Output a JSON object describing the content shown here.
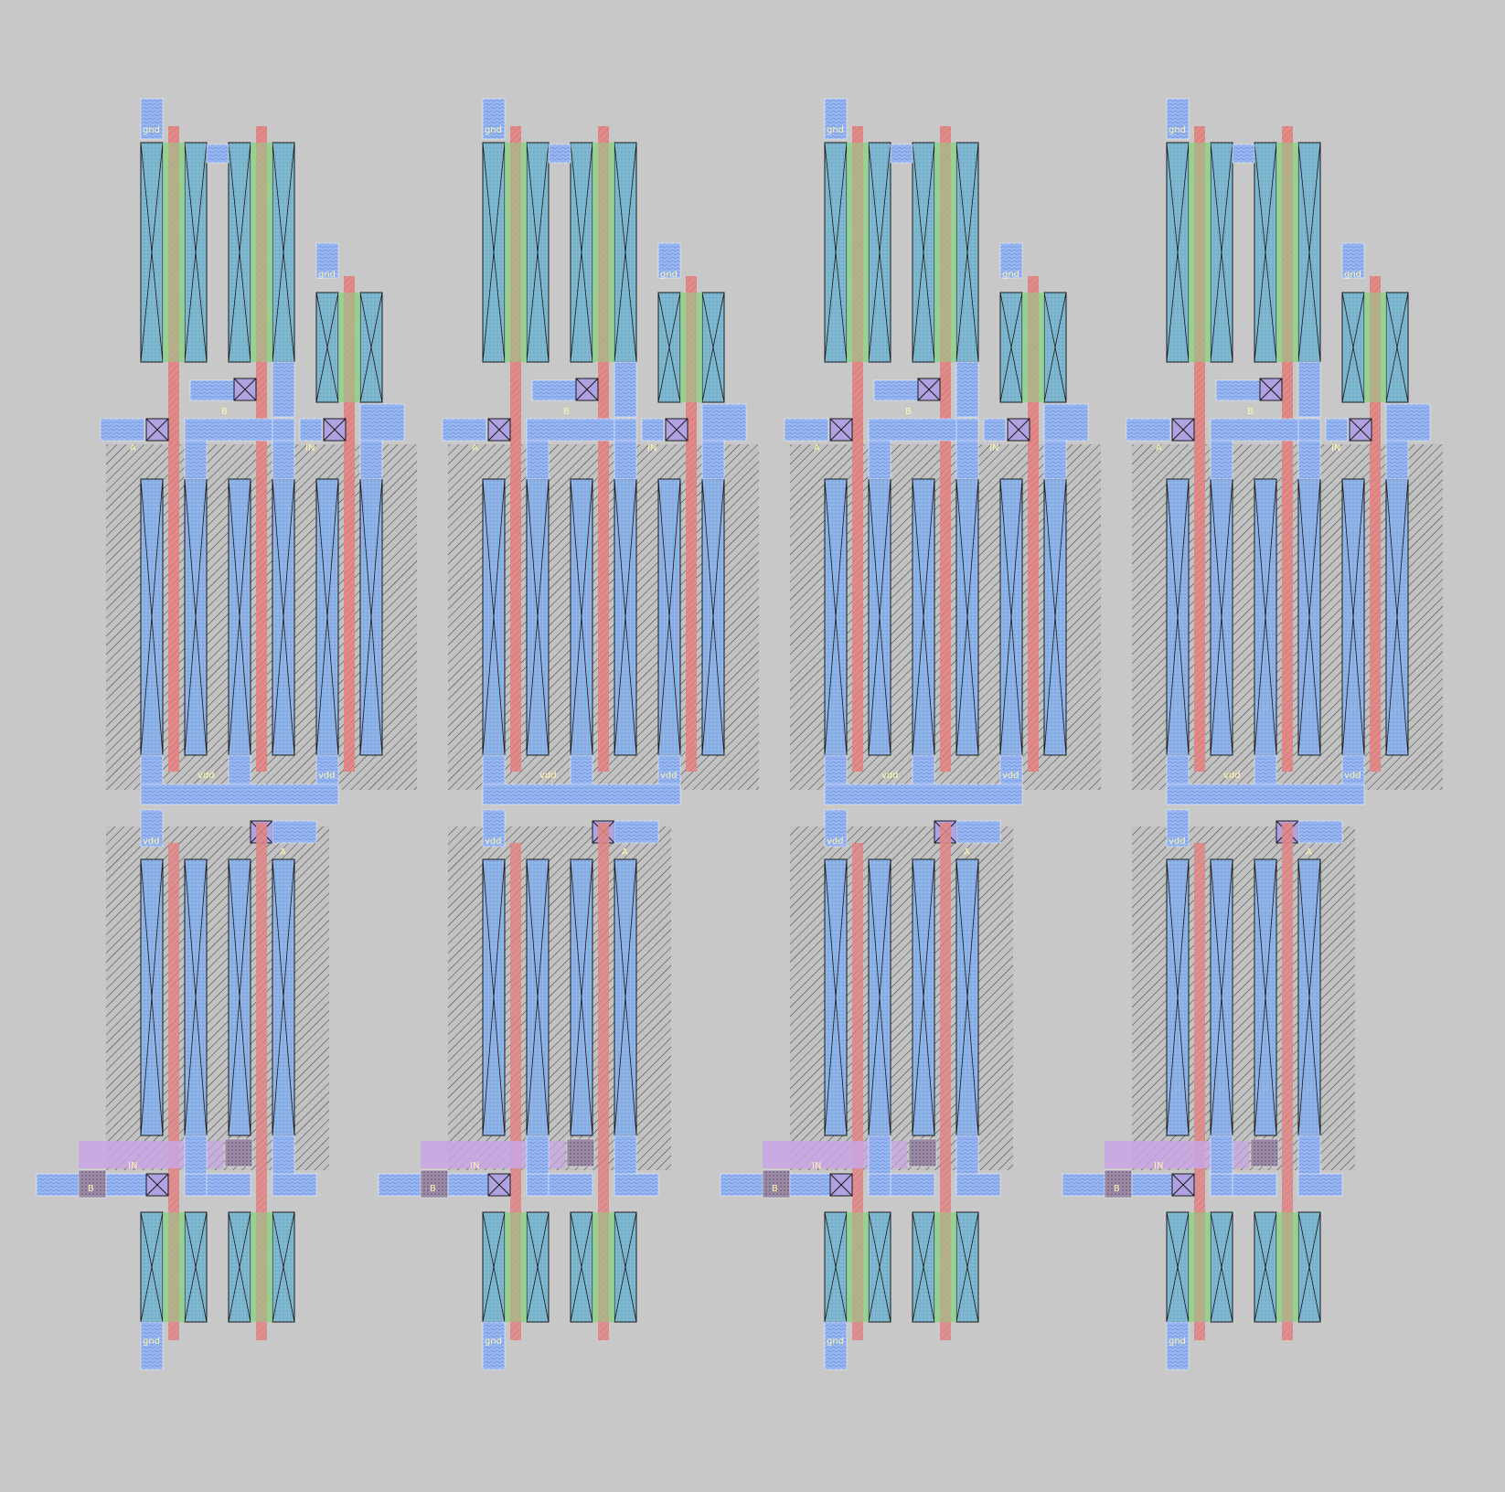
{
  "canvas": {
    "background": "#c8c8c8"
  },
  "layers": {
    "nwell": "#bdbdbd",
    "diffusion": "#8fb4e8",
    "pdiff": "#7fb9d1",
    "poly": "#e08a8a",
    "gate_overlap": "#8fd08a",
    "metal1": "#9ab8f2",
    "metal2": "#c9a6e6",
    "contact": "#b0a2e0",
    "label_color": "#fff6b0"
  },
  "cells": [
    {
      "name": "cell-1",
      "labels": {
        "gnd_top": "gnd",
        "gnd_top2": "gnd",
        "b_top": "B",
        "a_top": "A",
        "y_mid": "Y",
        "in_mid": "IN",
        "out_mid": "OUT",
        "vdd_mid1": "vdd",
        "vdd_mid2": "vdd",
        "vdd_low": "vdd",
        "a_low": "A",
        "in_low": "IN",
        "out_low": "OUT",
        "y_low": "Y",
        "b_low": "B",
        "gnd_bot": "gnd"
      }
    },
    {
      "name": "cell-2",
      "labels": {
        "gnd_top": "gnd",
        "gnd_top2": "gnd",
        "b_top": "B",
        "a_top": "A",
        "y_mid": "Y",
        "in_mid": "IN",
        "out_mid": "OUT",
        "vdd_mid1": "vdd",
        "vdd_mid2": "vdd",
        "vdd_low": "vdd",
        "a_low": "A",
        "in_low": "IN",
        "out_low": "OUT",
        "y_low": "Y",
        "b_low": "B",
        "gnd_bot": "gnd"
      }
    },
    {
      "name": "cell-3",
      "labels": {
        "gnd_top": "gnd",
        "gnd_top2": "gnd",
        "b_top": "B",
        "a_top": "A",
        "y_mid": "Y",
        "in_mid": "IN",
        "out_mid": "OUT",
        "vdd_mid1": "vdd",
        "vdd_mid2": "vdd",
        "vdd_low": "vdd",
        "a_low": "A",
        "in_low": "IN",
        "out_low": "OUT",
        "y_low": "Y",
        "b_low": "B",
        "gnd_bot": "gnd"
      }
    },
    {
      "name": "cell-4",
      "labels": {
        "gnd_top": "gnd",
        "gnd_top2": "gnd",
        "b_top": "B",
        "a_top": "A",
        "y_mid": "Y",
        "in_mid": "IN",
        "out_mid": "OUT",
        "vdd_mid1": "vdd",
        "vdd_mid2": "vdd",
        "vdd_low": "vdd",
        "a_low": "A",
        "in_low": "IN",
        "out_low": "OUT",
        "y_low": "Y",
        "b_low": "B",
        "gnd_bot": "gnd"
      }
    }
  ]
}
